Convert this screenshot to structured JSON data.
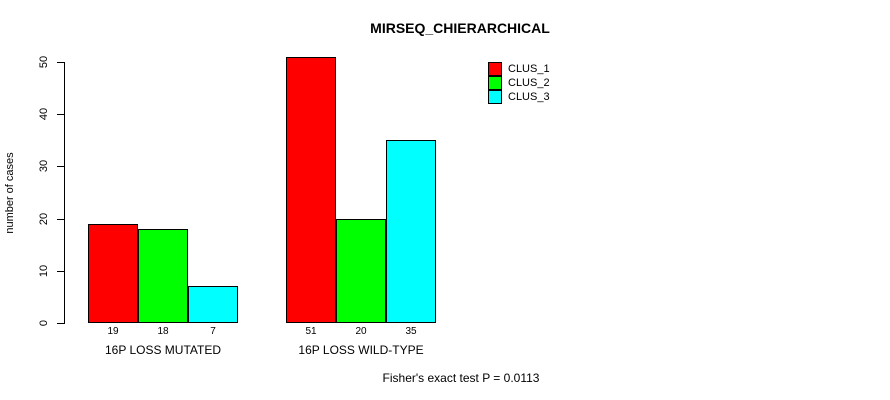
{
  "title": "MIRSEQ_CHIERARCHICAL",
  "y_axis": {
    "label": "number of cases",
    "ticks": [
      0,
      10,
      20,
      30,
      40,
      50
    ]
  },
  "footer": "Fisher's exact test P = 0.0113",
  "legend": {
    "items": [
      {
        "label": "CLUS_1",
        "color": "#ff0000"
      },
      {
        "label": "CLUS_2",
        "color": "#00ff00"
      },
      {
        "label": "CLUS_3",
        "color": "#00ffff"
      }
    ]
  },
  "chart_data": {
    "type": "bar",
    "title": "MIRSEQ_CHIERARCHICAL",
    "xlabel": "",
    "ylabel": "number of cases",
    "ylim": [
      0,
      50
    ],
    "yticks": [
      0,
      10,
      20,
      30,
      40,
      50
    ],
    "grid": false,
    "legend_position": "top-right",
    "categories": [
      "16P LOSS MUTATED",
      "16P LOSS WILD-TYPE"
    ],
    "series": [
      {
        "name": "CLUS_1",
        "color": "#ff0000",
        "values": [
          19,
          51
        ]
      },
      {
        "name": "CLUS_2",
        "color": "#00ff00",
        "values": [
          18,
          20
        ]
      },
      {
        "name": "CLUS_3",
        "color": "#00ffff",
        "values": [
          7,
          35
        ]
      }
    ],
    "bar_value_labels": [
      [
        19,
        18,
        7
      ],
      [
        51,
        20,
        35
      ]
    ],
    "annotation": "Fisher's exact test P = 0.0113"
  }
}
